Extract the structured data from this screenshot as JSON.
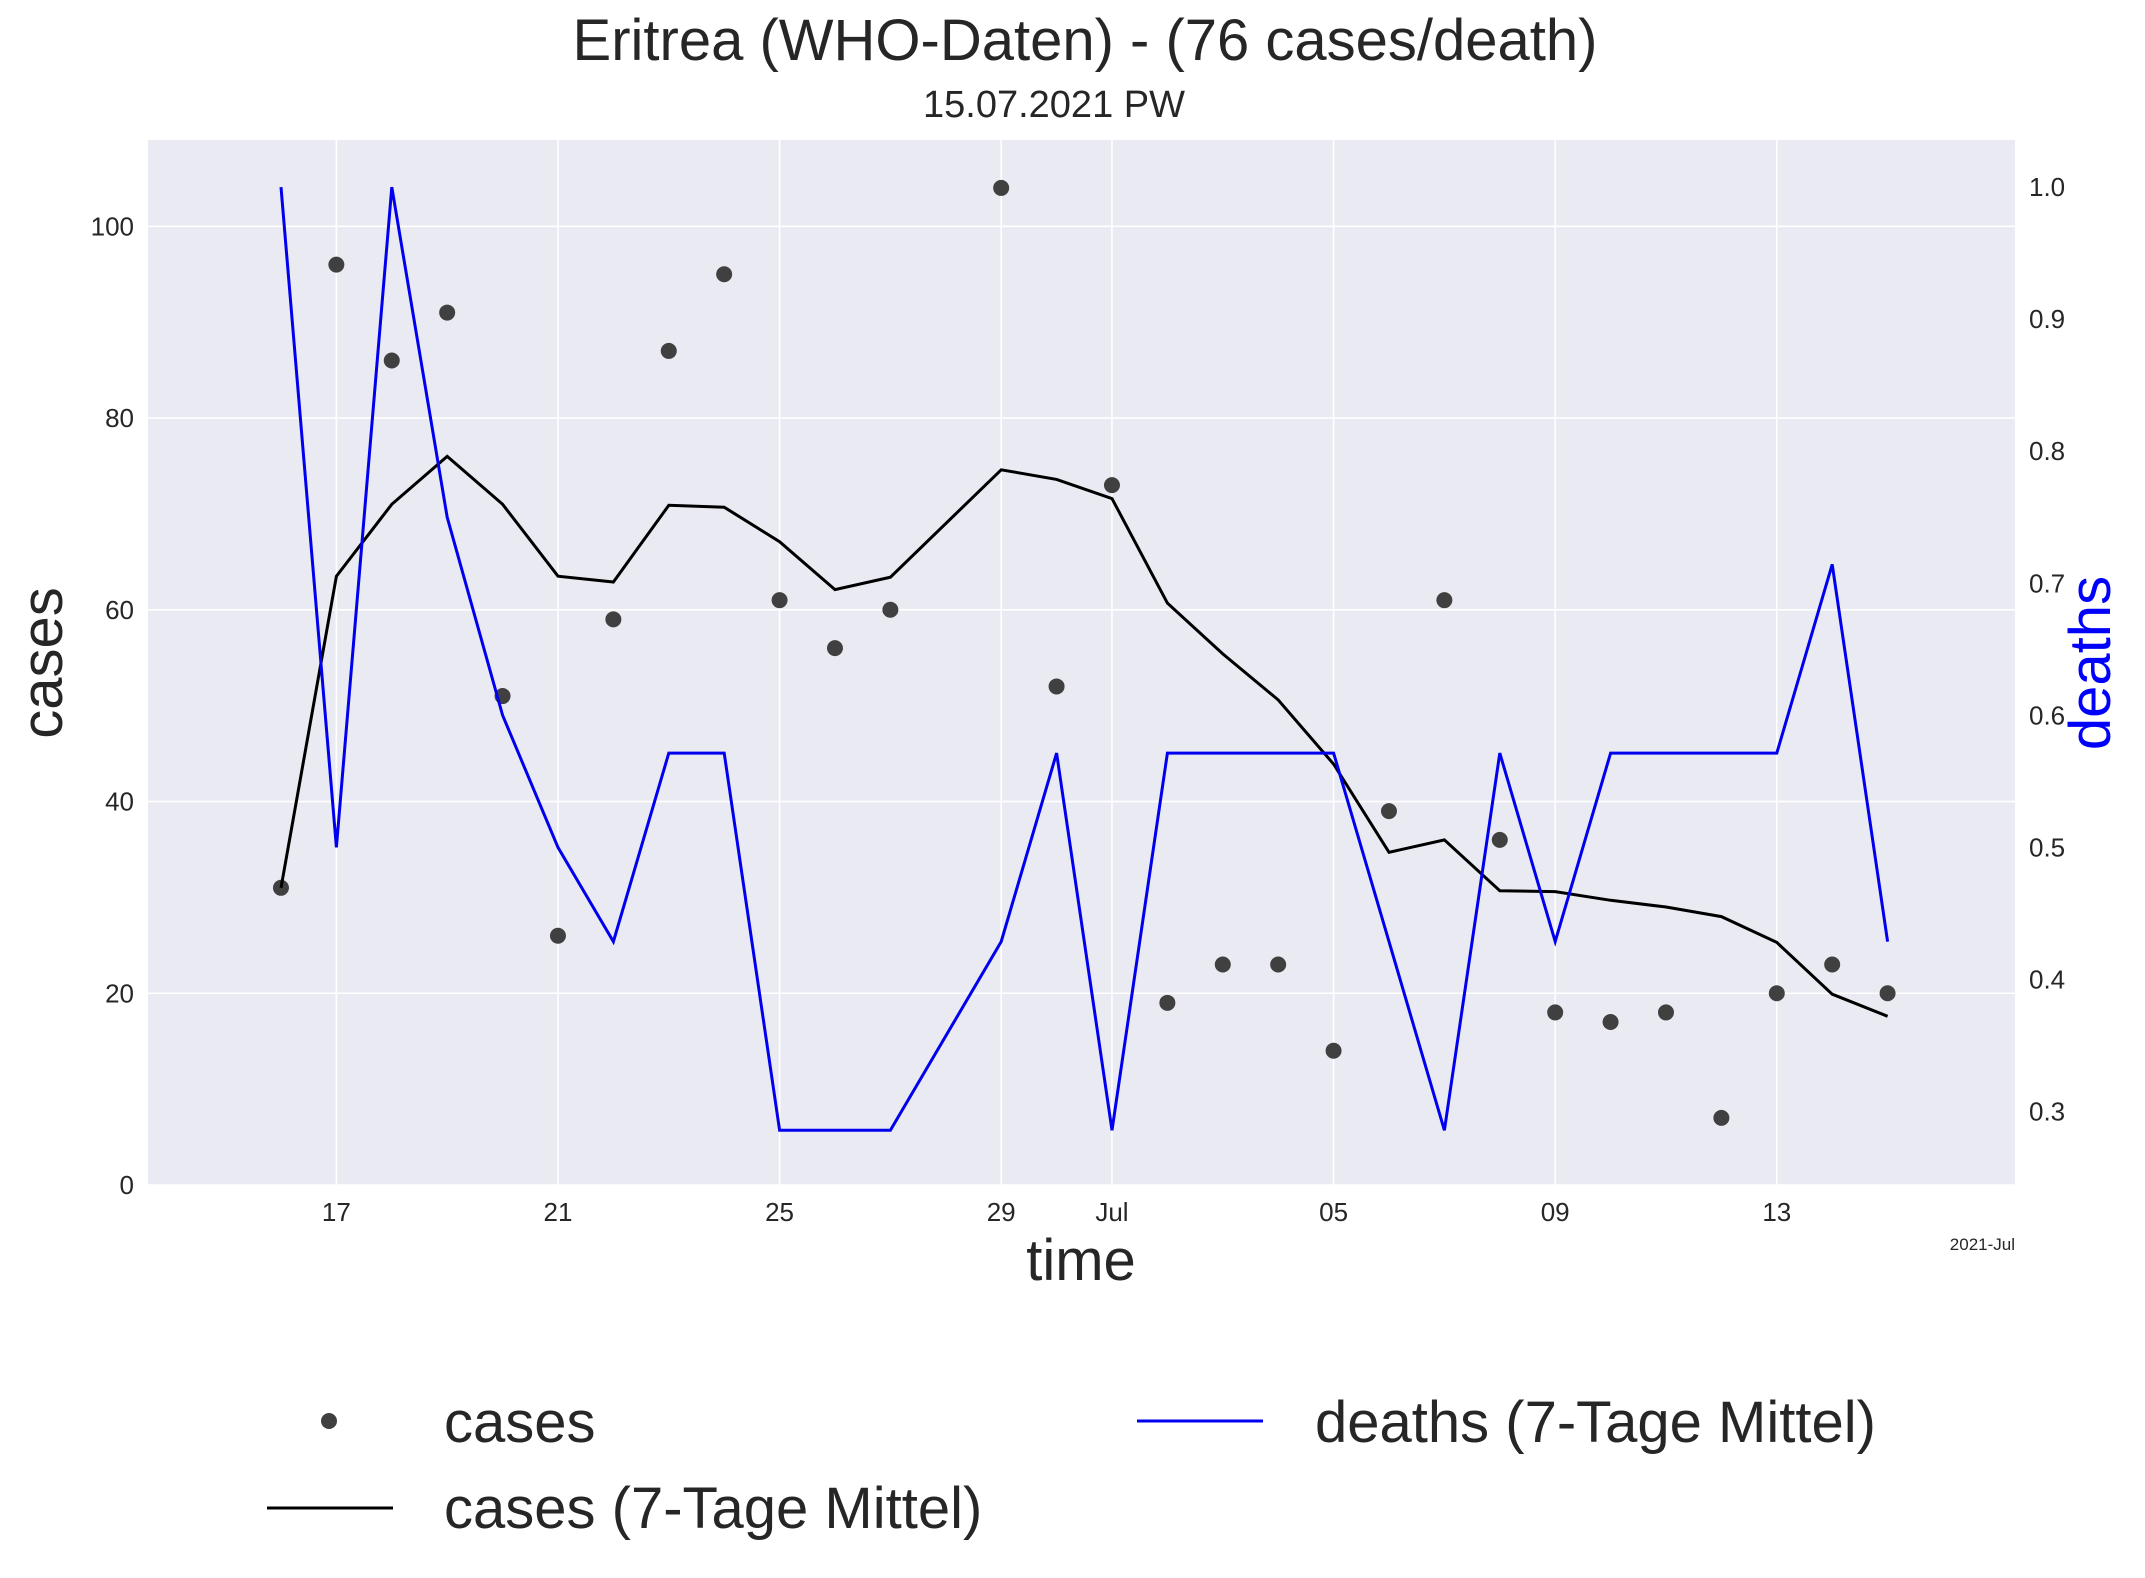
{
  "chart_data": {
    "type": "line",
    "title": "Eritrea (WHO-Daten) - (76 cases/death)",
    "subtitle": "15.07.2021 PW",
    "xlabel": "time",
    "ylabel": "cases",
    "y2label": "deaths",
    "x_offset_label": "2021-Jul",
    "x_tick_labels": [
      "17",
      "21",
      "25",
      "29",
      "Jul",
      "05",
      "09",
      "13"
    ],
    "x_tick_dates": [
      "2021-06-17",
      "2021-06-21",
      "2021-06-25",
      "2021-06-29",
      "2021-07-01",
      "2021-07-05",
      "2021-07-09",
      "2021-07-13"
    ],
    "y_ticks": [
      0,
      20,
      40,
      60,
      80,
      100
    ],
    "y_tick_labels": [
      "0",
      "20",
      "40",
      "60",
      "80",
      "100"
    ],
    "y2_ticks": [
      0.3,
      0.4,
      0.5,
      0.6,
      0.7,
      0.8,
      0.9,
      1.0
    ],
    "y2_tick_labels": [
      "0.3",
      "0.4",
      "0.5",
      "0.6",
      "0.7",
      "0.8",
      "0.9",
      "1.0"
    ],
    "xlim": [
      "2021-06-13.6",
      "2021-07-17.3"
    ],
    "ylim": [
      0,
      109
    ],
    "y2lim": [
      0.2443,
      1.0357
    ],
    "grid": true,
    "legend_position": "below",
    "x": [
      "2021-06-16",
      "2021-06-17",
      "2021-06-18",
      "2021-06-19",
      "2021-06-20",
      "2021-06-21",
      "2021-06-22",
      "2021-06-23",
      "2021-06-24",
      "2021-06-25",
      "2021-06-26",
      "2021-06-27",
      "2021-06-28",
      "2021-06-29",
      "2021-06-30",
      "2021-07-01",
      "2021-07-02",
      "2021-07-03",
      "2021-07-04",
      "2021-07-05",
      "2021-07-06",
      "2021-07-07",
      "2021-07-08",
      "2021-07-09",
      "2021-07-10",
      "2021-07-11",
      "2021-07-12",
      "2021-07-13",
      "2021-07-14",
      "2021-07-15"
    ],
    "series": [
      {
        "name": "cases",
        "kind": "scatter",
        "axis": "left",
        "color": "#404040",
        "values": [
          31,
          96,
          86,
          91,
          51,
          26,
          59,
          87,
          95,
          61,
          56,
          60,
          null,
          104,
          52,
          73,
          19,
          23,
          23,
          14,
          39,
          61,
          36,
          18,
          17,
          18,
          7,
          20,
          23,
          20
        ]
      },
      {
        "name": "cases (7-Tage Mittel)",
        "kind": "line",
        "axis": "left",
        "color": "#000000",
        "values": [
          31,
          63.5,
          71,
          76,
          71,
          63.5,
          62.9,
          70.9,
          70.7,
          67.1,
          62.1,
          63.4,
          null,
          74.6,
          73.6,
          71.6,
          60.7,
          55.4,
          50.6,
          43.9,
          34.7,
          36,
          30.7,
          30.6,
          29.7,
          29,
          28,
          25.3,
          19.9,
          17.6
        ]
      },
      {
        "name": "deaths (7-Tage Mittel)",
        "kind": "line",
        "axis": "right",
        "color": "#0000ee",
        "values": [
          1.0,
          0.5,
          1.0,
          0.75,
          0.6,
          0.5,
          0.4286,
          0.5714,
          0.5714,
          0.2857,
          0.2857,
          0.2857,
          null,
          0.4286,
          0.5714,
          0.2857,
          0.5714,
          0.5714,
          0.5714,
          0.5714,
          0.4286,
          0.2857,
          0.5714,
          0.4286,
          0.5714,
          0.5714,
          0.5714,
          0.5714,
          0.7143,
          0.4286
        ]
      }
    ]
  },
  "colors": {
    "plot_background": "#eaeaf2",
    "grid": "#ffffff",
    "text": "#262626",
    "deaths_axis_label": "#0000ff"
  }
}
